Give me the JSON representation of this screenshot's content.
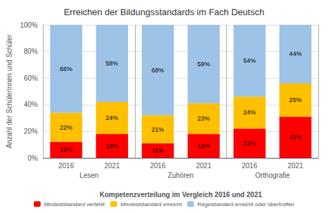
{
  "chart_data": {
    "type": "bar",
    "title": "Erreichen der Bildungsstandards im Fach Deutsch",
    "xlabel": "Kompetenzverteilung im Vergleich 2016 und 2021",
    "ylabel": "Anzahl der Schülerinnen und Schüler",
    "categories": [
      "2016",
      "2021",
      "2016",
      "2021",
      "2016",
      "2021"
    ],
    "groups": [
      "Lesen",
      "Zuhören",
      "Orthografie"
    ],
    "stacked": true,
    "data_labels": true,
    "grid": true,
    "legend": "bottom",
    "series": [
      {
        "name": "Mindeststandard verfehlt",
        "color": "#FF0000",
        "values": [
          12,
          18,
          11,
          18,
          22,
          31
        ],
        "value_labels": [
          "12%",
          "18%",
          "11%",
          "18%",
          "22%",
          "31%"
        ]
      },
      {
        "name": "Mindeststandard erreicht",
        "color": "#FFC000",
        "values": [
          22,
          24,
          21,
          23,
          24,
          25
        ],
        "value_labels": [
          "22%",
          "24%",
          "21%",
          "23%",
          "24%",
          "25%"
        ]
      },
      {
        "name": "Regelstandard erreicht oder übertroffen",
        "color": "#9DC3E6",
        "values": [
          66,
          58,
          68,
          59,
          54,
          44
        ],
        "value_labels": [
          "66%",
          "58%",
          "68%",
          "59%",
          "54%",
          "44%"
        ]
      }
    ],
    "ylim": [
      0,
      100
    ],
    "yticks": [
      {
        "value": 0,
        "label": "0%"
      },
      {
        "value": 20,
        "label": "20%"
      },
      {
        "value": 40,
        "label": "40%"
      },
      {
        "value": 60,
        "label": "60%"
      },
      {
        "value": 80,
        "label": "80%"
      },
      {
        "value": 100,
        "label": "100%"
      }
    ]
  }
}
